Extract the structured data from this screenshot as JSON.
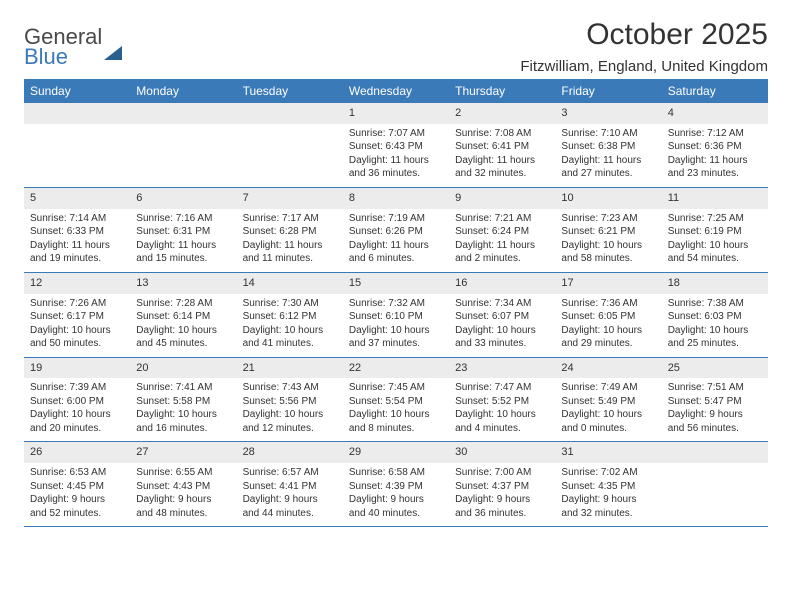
{
  "logo": {
    "part1": "General",
    "part2": "Blue"
  },
  "title": "October 2025",
  "location": "Fitzwilliam, England, United Kingdom",
  "day_headers": [
    "Sunday",
    "Monday",
    "Tuesday",
    "Wednesday",
    "Thursday",
    "Friday",
    "Saturday"
  ],
  "colors": {
    "header_bg": "#3a7ab8",
    "header_text": "#ffffff",
    "daynum_bg": "#ececec",
    "border": "#3a7ab8",
    "text": "#333333",
    "logo_gray": "#4a4a4a",
    "logo_blue": "#3a7ab8"
  },
  "weeks": [
    [
      {
        "empty": true
      },
      {
        "empty": true
      },
      {
        "empty": true
      },
      {
        "num": "1",
        "sunrise": "Sunrise: 7:07 AM",
        "sunset": "Sunset: 6:43 PM",
        "daylight1": "Daylight: 11 hours",
        "daylight2": "and 36 minutes."
      },
      {
        "num": "2",
        "sunrise": "Sunrise: 7:08 AM",
        "sunset": "Sunset: 6:41 PM",
        "daylight1": "Daylight: 11 hours",
        "daylight2": "and 32 minutes."
      },
      {
        "num": "3",
        "sunrise": "Sunrise: 7:10 AM",
        "sunset": "Sunset: 6:38 PM",
        "daylight1": "Daylight: 11 hours",
        "daylight2": "and 27 minutes."
      },
      {
        "num": "4",
        "sunrise": "Sunrise: 7:12 AM",
        "sunset": "Sunset: 6:36 PM",
        "daylight1": "Daylight: 11 hours",
        "daylight2": "and 23 minutes."
      }
    ],
    [
      {
        "num": "5",
        "sunrise": "Sunrise: 7:14 AM",
        "sunset": "Sunset: 6:33 PM",
        "daylight1": "Daylight: 11 hours",
        "daylight2": "and 19 minutes."
      },
      {
        "num": "6",
        "sunrise": "Sunrise: 7:16 AM",
        "sunset": "Sunset: 6:31 PM",
        "daylight1": "Daylight: 11 hours",
        "daylight2": "and 15 minutes."
      },
      {
        "num": "7",
        "sunrise": "Sunrise: 7:17 AM",
        "sunset": "Sunset: 6:28 PM",
        "daylight1": "Daylight: 11 hours",
        "daylight2": "and 11 minutes."
      },
      {
        "num": "8",
        "sunrise": "Sunrise: 7:19 AM",
        "sunset": "Sunset: 6:26 PM",
        "daylight1": "Daylight: 11 hours",
        "daylight2": "and 6 minutes."
      },
      {
        "num": "9",
        "sunrise": "Sunrise: 7:21 AM",
        "sunset": "Sunset: 6:24 PM",
        "daylight1": "Daylight: 11 hours",
        "daylight2": "and 2 minutes."
      },
      {
        "num": "10",
        "sunrise": "Sunrise: 7:23 AM",
        "sunset": "Sunset: 6:21 PM",
        "daylight1": "Daylight: 10 hours",
        "daylight2": "and 58 minutes."
      },
      {
        "num": "11",
        "sunrise": "Sunrise: 7:25 AM",
        "sunset": "Sunset: 6:19 PM",
        "daylight1": "Daylight: 10 hours",
        "daylight2": "and 54 minutes."
      }
    ],
    [
      {
        "num": "12",
        "sunrise": "Sunrise: 7:26 AM",
        "sunset": "Sunset: 6:17 PM",
        "daylight1": "Daylight: 10 hours",
        "daylight2": "and 50 minutes."
      },
      {
        "num": "13",
        "sunrise": "Sunrise: 7:28 AM",
        "sunset": "Sunset: 6:14 PM",
        "daylight1": "Daylight: 10 hours",
        "daylight2": "and 45 minutes."
      },
      {
        "num": "14",
        "sunrise": "Sunrise: 7:30 AM",
        "sunset": "Sunset: 6:12 PM",
        "daylight1": "Daylight: 10 hours",
        "daylight2": "and 41 minutes."
      },
      {
        "num": "15",
        "sunrise": "Sunrise: 7:32 AM",
        "sunset": "Sunset: 6:10 PM",
        "daylight1": "Daylight: 10 hours",
        "daylight2": "and 37 minutes."
      },
      {
        "num": "16",
        "sunrise": "Sunrise: 7:34 AM",
        "sunset": "Sunset: 6:07 PM",
        "daylight1": "Daylight: 10 hours",
        "daylight2": "and 33 minutes."
      },
      {
        "num": "17",
        "sunrise": "Sunrise: 7:36 AM",
        "sunset": "Sunset: 6:05 PM",
        "daylight1": "Daylight: 10 hours",
        "daylight2": "and 29 minutes."
      },
      {
        "num": "18",
        "sunrise": "Sunrise: 7:38 AM",
        "sunset": "Sunset: 6:03 PM",
        "daylight1": "Daylight: 10 hours",
        "daylight2": "and 25 minutes."
      }
    ],
    [
      {
        "num": "19",
        "sunrise": "Sunrise: 7:39 AM",
        "sunset": "Sunset: 6:00 PM",
        "daylight1": "Daylight: 10 hours",
        "daylight2": "and 20 minutes."
      },
      {
        "num": "20",
        "sunrise": "Sunrise: 7:41 AM",
        "sunset": "Sunset: 5:58 PM",
        "daylight1": "Daylight: 10 hours",
        "daylight2": "and 16 minutes."
      },
      {
        "num": "21",
        "sunrise": "Sunrise: 7:43 AM",
        "sunset": "Sunset: 5:56 PM",
        "daylight1": "Daylight: 10 hours",
        "daylight2": "and 12 minutes."
      },
      {
        "num": "22",
        "sunrise": "Sunrise: 7:45 AM",
        "sunset": "Sunset: 5:54 PM",
        "daylight1": "Daylight: 10 hours",
        "daylight2": "and 8 minutes."
      },
      {
        "num": "23",
        "sunrise": "Sunrise: 7:47 AM",
        "sunset": "Sunset: 5:52 PM",
        "daylight1": "Daylight: 10 hours",
        "daylight2": "and 4 minutes."
      },
      {
        "num": "24",
        "sunrise": "Sunrise: 7:49 AM",
        "sunset": "Sunset: 5:49 PM",
        "daylight1": "Daylight: 10 hours",
        "daylight2": "and 0 minutes."
      },
      {
        "num": "25",
        "sunrise": "Sunrise: 7:51 AM",
        "sunset": "Sunset: 5:47 PM",
        "daylight1": "Daylight: 9 hours",
        "daylight2": "and 56 minutes."
      }
    ],
    [
      {
        "num": "26",
        "sunrise": "Sunrise: 6:53 AM",
        "sunset": "Sunset: 4:45 PM",
        "daylight1": "Daylight: 9 hours",
        "daylight2": "and 52 minutes."
      },
      {
        "num": "27",
        "sunrise": "Sunrise: 6:55 AM",
        "sunset": "Sunset: 4:43 PM",
        "daylight1": "Daylight: 9 hours",
        "daylight2": "and 48 minutes."
      },
      {
        "num": "28",
        "sunrise": "Sunrise: 6:57 AM",
        "sunset": "Sunset: 4:41 PM",
        "daylight1": "Daylight: 9 hours",
        "daylight2": "and 44 minutes."
      },
      {
        "num": "29",
        "sunrise": "Sunrise: 6:58 AM",
        "sunset": "Sunset: 4:39 PM",
        "daylight1": "Daylight: 9 hours",
        "daylight2": "and 40 minutes."
      },
      {
        "num": "30",
        "sunrise": "Sunrise: 7:00 AM",
        "sunset": "Sunset: 4:37 PM",
        "daylight1": "Daylight: 9 hours",
        "daylight2": "and 36 minutes."
      },
      {
        "num": "31",
        "sunrise": "Sunrise: 7:02 AM",
        "sunset": "Sunset: 4:35 PM",
        "daylight1": "Daylight: 9 hours",
        "daylight2": "and 32 minutes."
      },
      {
        "empty": true
      }
    ]
  ]
}
